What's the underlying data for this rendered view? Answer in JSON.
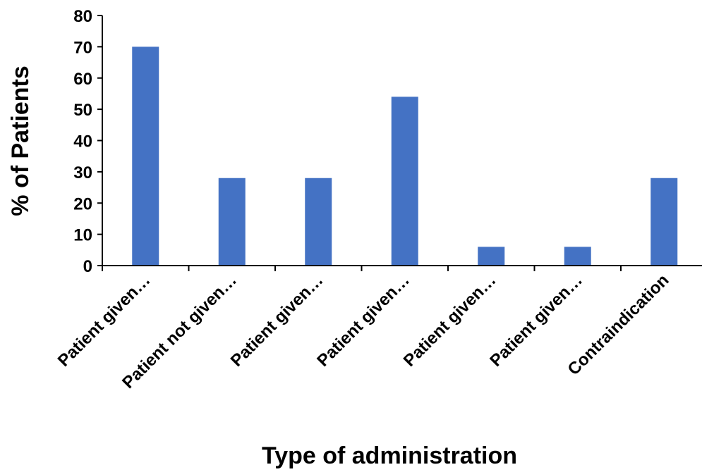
{
  "chart_data": {
    "type": "bar",
    "categories": [
      "Patient given…",
      "Patient not given…",
      "Patient given…",
      "Patient given…",
      "Patient given…",
      "Patient given…",
      "Contraindication"
    ],
    "values": [
      70,
      28,
      28,
      54,
      6,
      6,
      28
    ],
    "title": "",
    "xlabel": "Type of administration",
    "ylabel": "% of Patients",
    "ylim": [
      0,
      80
    ],
    "yticks": [
      0,
      10,
      20,
      30,
      40,
      50,
      60,
      70,
      80
    ],
    "grid": false,
    "legend": "none",
    "bar_color": "#4472C4"
  }
}
